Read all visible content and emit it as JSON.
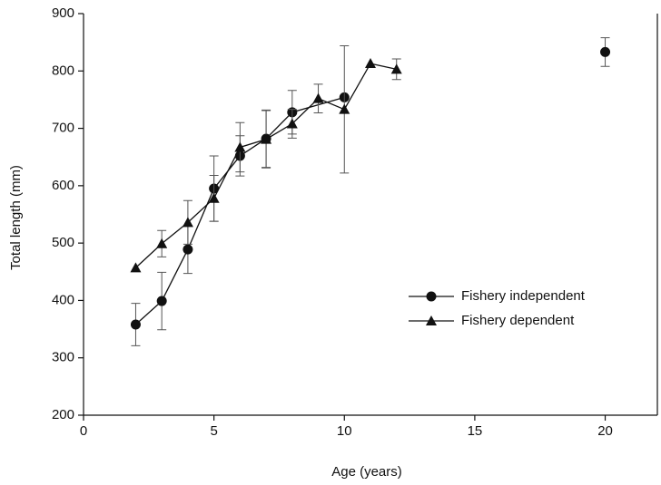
{
  "chart_data": {
    "type": "line",
    "x_label": "Age (years)",
    "y_label": "Total length (mm)",
    "xlim": [
      0,
      22
    ],
    "ylim": [
      200,
      900
    ],
    "xticks": [
      0,
      5,
      10,
      15,
      20
    ],
    "yticks": [
      200,
      300,
      400,
      500,
      600,
      700,
      800,
      900
    ],
    "legend": "right",
    "series": [
      {
        "name": "Fishery independent",
        "color": "#111111",
        "marker": "circle",
        "x": [
          2,
          3,
          4,
          5,
          6,
          7,
          8,
          10,
          11,
          20
        ],
        "values": [
          358,
          399,
          489,
          595,
          652,
          682,
          728,
          754,
          null,
          833
        ],
        "errors": [
          37,
          50,
          42,
          57,
          35,
          50,
          38,
          null,
          null,
          25
        ]
      },
      {
        "name": "Fishery dependent",
        "color": "#111111",
        "marker": "triangle",
        "x": [
          2,
          3,
          4,
          5,
          6,
          7,
          8,
          9,
          10,
          11,
          12
        ],
        "values": [
          457,
          499,
          536,
          578,
          667,
          681,
          708,
          752,
          733,
          813,
          803
        ],
        "errors": [
          null,
          23,
          38,
          40,
          43,
          50,
          25,
          25,
          111,
          null,
          18
        ]
      }
    ]
  }
}
